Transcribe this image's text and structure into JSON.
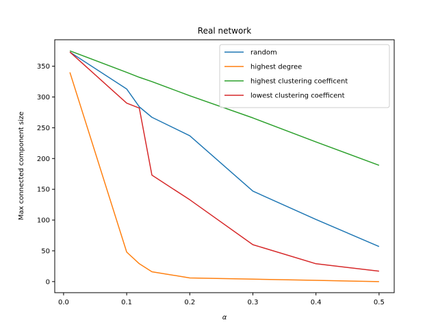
{
  "chart_data": {
    "type": "line",
    "title": "Real network",
    "xlabel": "α",
    "ylabel": "Max connected component size",
    "xlim": [
      -0.014,
      0.524
    ],
    "ylim": [
      -18,
      393
    ],
    "xticks": [
      0.0,
      0.1,
      0.2,
      0.3,
      0.4,
      0.5
    ],
    "xtick_labels": [
      "0.0",
      "0.1",
      "0.2",
      "0.3",
      "0.4",
      "0.5"
    ],
    "yticks": [
      0,
      50,
      100,
      150,
      200,
      250,
      300,
      350
    ],
    "ytick_labels": [
      "0",
      "50",
      "100",
      "150",
      "200",
      "250",
      "300",
      "350"
    ],
    "grid": false,
    "legend_position": "top-right",
    "series": [
      {
        "name": "random",
        "color": "#1f77b4",
        "x": [
          0.01,
          0.1,
          0.12,
          0.14,
          0.2,
          0.3,
          0.4,
          0.5
        ],
        "y": [
          373,
          313,
          284,
          267,
          237,
          147,
          101,
          57
        ]
      },
      {
        "name": "highest degree",
        "color": "#ff7f0e",
        "x": [
          0.01,
          0.1,
          0.12,
          0.14,
          0.2,
          0.3,
          0.4,
          0.5
        ],
        "y": [
          340,
          48,
          29,
          16,
          6,
          4,
          2,
          0
        ]
      },
      {
        "name": "highest clustering coefficent",
        "color": "#2ca02c",
        "x": [
          0.01,
          0.1,
          0.12,
          0.14,
          0.2,
          0.3,
          0.4,
          0.5
        ],
        "y": [
          375,
          340,
          332,
          325,
          302,
          266,
          227,
          189
        ]
      },
      {
        "name": "lowest clustering coefficent",
        "color": "#d62728",
        "x": [
          0.01,
          0.1,
          0.12,
          0.14,
          0.2,
          0.3,
          0.4,
          0.5
        ],
        "y": [
          373,
          290,
          282,
          173,
          133,
          60,
          29,
          17
        ]
      }
    ]
  }
}
